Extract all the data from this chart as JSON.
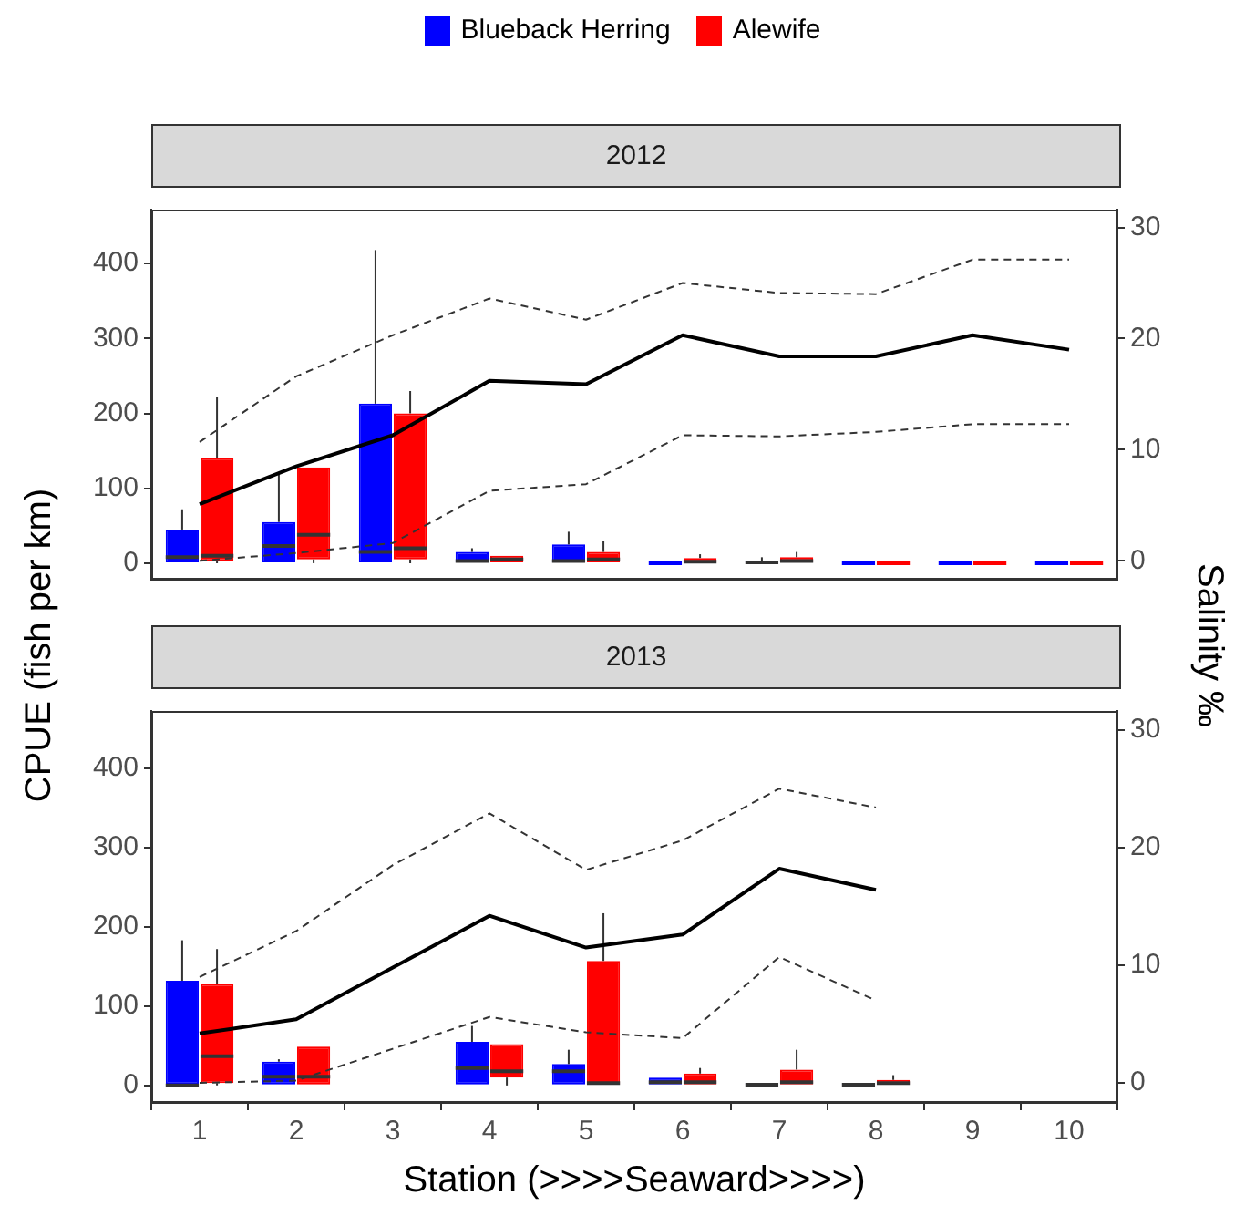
{
  "chart_data": [
    {
      "type": "box",
      "title": "2012",
      "ylabel": "CPUE (fish per km)",
      "y2label": "Salinity ‰",
      "legend": "top",
      "tick_labels": "y",
      "categories": [
        "1",
        "2",
        "3",
        "4",
        "5",
        "6",
        "7",
        "8",
        "9",
        "10"
      ],
      "ylim": [
        -22,
        472
      ],
      "yticks": [
        0,
        100,
        200,
        300,
        400
      ],
      "y2lim": [
        -1.7,
        31.6
      ],
      "y2ticks": [
        0,
        10,
        20,
        30
      ],
      "series": [
        {
          "name": "Blueback Herring",
          "type": "box",
          "color": "#0000ff",
          "boxes": [
            {
              "low": 0,
              "q1": 0,
              "median": 8,
              "q3": 45,
              "high": 72
            },
            {
              "low": 0,
              "q1": 0,
              "median": 23,
              "q3": 55,
              "high": 120
            },
            {
              "low": 0,
              "q1": 0,
              "median": 15,
              "q3": 213,
              "high": 418
            },
            {
              "low": 0,
              "q1": 0,
              "median": 3,
              "q3": 15,
              "high": 20
            },
            {
              "low": 0,
              "q1": 0,
              "median": 3,
              "q3": 25,
              "high": 42
            },
            {
              "low": 0,
              "q1": 0,
              "median": 0,
              "q3": 0,
              "high": 0
            },
            {
              "low": 0,
              "q1": 0,
              "median": 1,
              "q3": 3,
              "high": 8
            },
            {
              "low": 0,
              "q1": 0,
              "median": 0,
              "q3": 0,
              "high": 0
            },
            {
              "low": 0,
              "q1": 0,
              "median": 0,
              "q3": 0,
              "high": 0
            },
            {
              "low": 0,
              "q1": 0,
              "median": 0,
              "q3": 0,
              "high": 0
            }
          ]
        },
        {
          "name": "Alewife",
          "type": "box",
          "color": "#ff0000",
          "boxes": [
            {
              "low": 0,
              "q1": 3,
              "median": 10,
              "q3": 140,
              "high": 222
            },
            {
              "low": 0,
              "q1": 5,
              "median": 38,
              "q3": 128,
              "high": 128
            },
            {
              "low": 0,
              "q1": 5,
              "median": 20,
              "q3": 200,
              "high": 230
            },
            {
              "low": 0,
              "q1": 0,
              "median": 5,
              "q3": 10,
              "high": 10
            },
            {
              "low": 0,
              "q1": 0,
              "median": 5,
              "q3": 15,
              "high": 30
            },
            {
              "low": 0,
              "q1": 0,
              "median": 2,
              "q3": 7,
              "high": 12
            },
            {
              "low": 0,
              "q1": 0,
              "median": 3,
              "q3": 8,
              "high": 15
            },
            {
              "low": 0,
              "q1": 0,
              "median": 0,
              "q3": 0,
              "high": 0
            },
            {
              "low": 0,
              "q1": 0,
              "median": 0,
              "q3": 0,
              "high": 0
            },
            {
              "low": 0,
              "q1": 0,
              "median": 0,
              "q3": 0,
              "high": 0
            }
          ]
        },
        {
          "type": "line",
          "axis": "y2",
          "color": "#000000",
          "line_style": "solid",
          "values": [
            5.1,
            8.5,
            11.3,
            16.2,
            15.9,
            20.3,
            18.4,
            18.4,
            20.3,
            19.0
          ]
        },
        {
          "type": "line",
          "axis": "y2",
          "color": "#333333",
          "line_style": "dashed",
          "values": [
            10.7,
            16.6,
            20.3,
            23.6,
            21.7,
            25.0,
            24.1,
            24.0,
            27.1,
            27.1
          ]
        },
        {
          "type": "line",
          "axis": "y2",
          "color": "#333333",
          "line_style": "dashed",
          "values": [
            0,
            0.7,
            1.6,
            6.3,
            6.9,
            11.3,
            11.2,
            11.6,
            12.3,
            12.3
          ]
        }
      ]
    },
    {
      "type": "box",
      "title": "2013",
      "xlabel": "Station (>>>>Seaward>>>>)",
      "categories": [
        "1",
        "2",
        "3",
        "4",
        "5",
        "6",
        "7",
        "8",
        "9",
        "10"
      ],
      "ylim": [
        -22,
        472
      ],
      "yticks": [
        0,
        100,
        200,
        300,
        400
      ],
      "y2lim": [
        -1.7,
        31.6
      ],
      "y2ticks": [
        0,
        10,
        20,
        30
      ],
      "series": [
        {
          "type": "box",
          "color": "#0000ff",
          "boxes": [
            {
              "low": 0,
              "q1": 0,
              "median": 0,
              "q3": 132,
              "high": 183
            },
            {
              "low": 0,
              "q1": 0,
              "median": 11,
              "q3": 30,
              "high": 33
            },
            null,
            {
              "low": 0,
              "q1": 0,
              "median": 22,
              "q3": 55,
              "high": 75
            },
            {
              "low": 0,
              "q1": 0,
              "median": 18,
              "q3": 27,
              "high": 45
            },
            {
              "low": 0,
              "q1": 0,
              "median": 4,
              "q3": 10,
              "high": 10
            },
            {
              "low": 0,
              "q1": 0,
              "median": 1,
              "q3": 3,
              "high": 3
            },
            {
              "low": 0,
              "q1": 0,
              "median": 1,
              "q3": 3,
              "high": 3
            },
            null,
            null
          ]
        },
        {
          "type": "box",
          "color": "#ff0000",
          "boxes": [
            {
              "low": 0,
              "q1": 3,
              "median": 37,
              "q3": 128,
              "high": 172
            },
            {
              "low": 0,
              "q1": 0,
              "median": 11,
              "q3": 49,
              "high": 49
            },
            null,
            {
              "low": 0,
              "q1": 10,
              "median": 18,
              "q3": 52,
              "high": 52
            },
            {
              "low": 0,
              "q1": 0,
              "median": 3,
              "q3": 157,
              "high": 217
            },
            {
              "low": 0,
              "q1": 0,
              "median": 4,
              "q3": 15,
              "high": 22
            },
            {
              "low": 0,
              "q1": 0,
              "median": 4,
              "q3": 20,
              "high": 45
            },
            {
              "low": 0,
              "q1": 0,
              "median": 3,
              "q3": 7,
              "high": 13
            },
            null,
            null
          ]
        },
        {
          "type": "line",
          "axis": "y2",
          "color": "#000000",
          "line_style": "solid",
          "values": [
            4.2,
            5.4,
            9.8,
            14.2,
            11.5,
            12.6,
            18.2,
            16.4,
            null,
            null
          ]
        },
        {
          "type": "line",
          "axis": "y2",
          "color": "#333333",
          "line_style": "dashed",
          "values": [
            9.0,
            12.9,
            18.5,
            22.9,
            18.1,
            20.6,
            25.0,
            23.4,
            null,
            null
          ]
        },
        {
          "type": "line",
          "axis": "y2",
          "color": "#333333",
          "line_style": "dashed",
          "values": [
            0,
            0.2,
            2.9,
            5.6,
            4.3,
            3.8,
            10.7,
            7.0,
            null,
            null
          ]
        }
      ]
    }
  ]
}
